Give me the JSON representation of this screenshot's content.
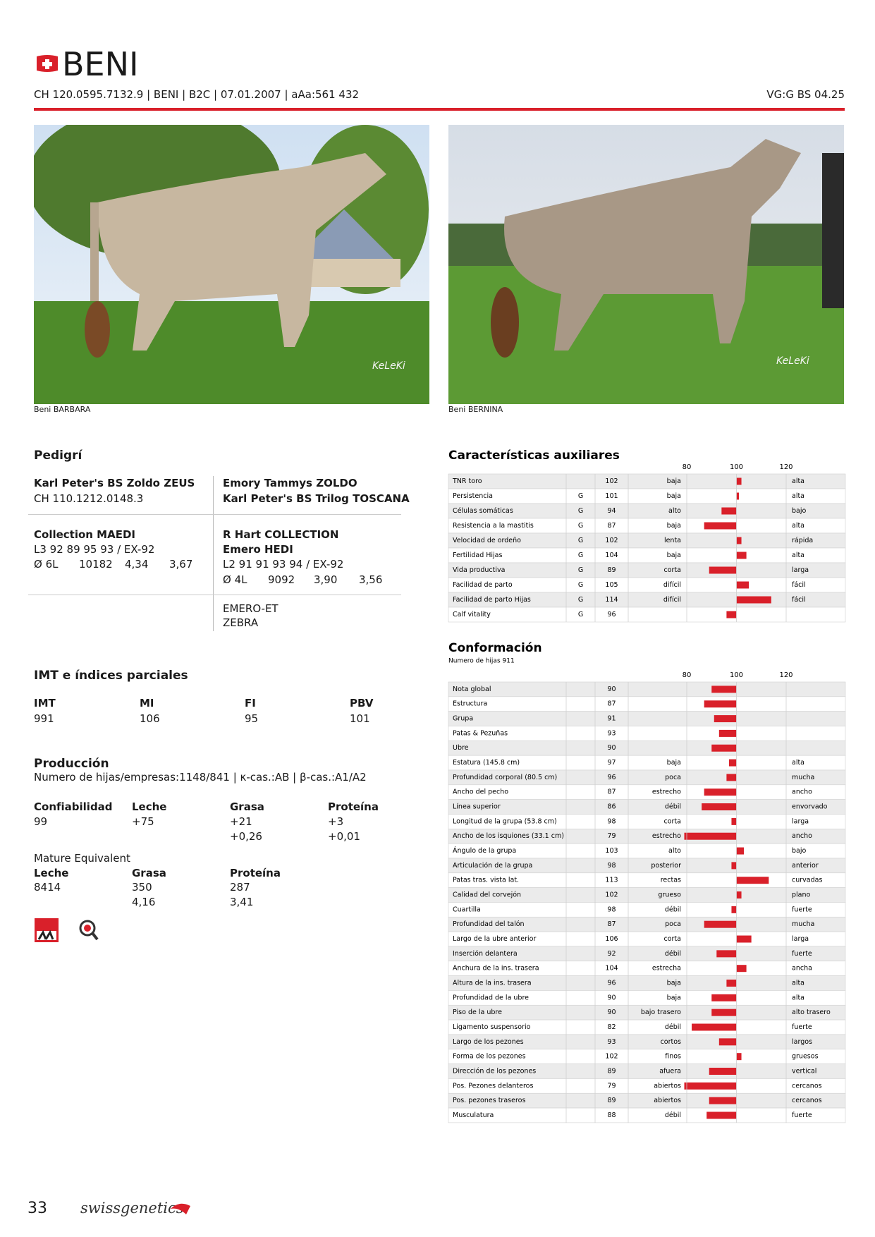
{
  "header": {
    "title": "BENI",
    "id_line": "CH 120.0595.7132.9 | BENI | B2C | 07.01.2007 | aAa:561 432",
    "classification": "VG:G BS 04.25"
  },
  "photos": [
    {
      "caption": "Beni BARBARA",
      "watermark": "KeLeKi"
    },
    {
      "caption": "Beni BERNINA",
      "watermark": "KeLeKi"
    }
  ],
  "pedigree": {
    "title": "Pedigrí",
    "sire": {
      "name": "Karl Peter's BS Zoldo ZEUS",
      "id": "CH 110.1212.0148.3"
    },
    "sire_parents": [
      "Emory Tammys ZOLDO",
      "Karl Peter's BS Trilog TOSCANA"
    ],
    "dam": {
      "name": "Collection MAEDI",
      "score": "L3 92 89 95 93 / EX-92",
      "lactations": "Ø 6L",
      "milk": "10182",
      "fat": "4,34",
      "protein": "3,67"
    },
    "dam_parents": {
      "sire": "R Hart COLLECTION",
      "dam": "Emero HEDI",
      "score": "L2 91 91 93 94 / EX-92",
      "lactations": "Ø 4L",
      "milk": "9092",
      "fat": "3,90",
      "protein": "3,56"
    },
    "granddam_parents": [
      "EMERO-ET",
      "ZEBRA"
    ]
  },
  "indices": {
    "title": "IMT e índices parciales",
    "headers": [
      "IMT",
      "MI",
      "FI",
      "PBV"
    ],
    "values": [
      "991",
      "106",
      "95",
      "101"
    ]
  },
  "production": {
    "title": "Producción",
    "subtitle": "Numero de hijas/empresas:1148/841 | κ-cas.:AB | β-cas.:A1/A2",
    "headers": [
      "Confiabilidad",
      "Leche",
      "Grasa",
      "Proteína"
    ],
    "values": [
      [
        "99"
      ],
      [
        "+75"
      ],
      [
        "+21",
        "+0,26"
      ],
      [
        "+3",
        "+0,01"
      ]
    ],
    "mature_title": "Mature Equivalent",
    "mature_headers": [
      "Leche",
      "Grasa",
      "Proteína"
    ],
    "mature_values": [
      [
        "8414"
      ],
      [
        "350",
        "4,16"
      ],
      [
        "287",
        "3,41"
      ]
    ]
  },
  "auxiliary": {
    "title": "Características auxiliares",
    "xlim": [
      80,
      120
    ],
    "xticks": [
      80,
      100,
      120
    ],
    "rows": [
      {
        "name": "TNR toro",
        "g": null,
        "value": 102,
        "low": "baja",
        "high": "alta"
      },
      {
        "name": "Persistencia",
        "g": "G",
        "value": 101,
        "low": "baja",
        "high": "alta"
      },
      {
        "name": "Células somáticas",
        "g": "G",
        "value": 94,
        "low": "alto",
        "high": "bajo"
      },
      {
        "name": "Resistencia a la mastitis",
        "g": "G",
        "value": 87,
        "low": "baja",
        "high": "alta"
      },
      {
        "name": "Velocidad de ordeño",
        "g": "G",
        "value": 102,
        "low": "lenta",
        "high": "rápida"
      },
      {
        "name": "Fertilidad Hijas",
        "g": "G",
        "value": 104,
        "low": "baja",
        "high": "alta"
      },
      {
        "name": "Vida productiva",
        "g": "G",
        "value": 89,
        "low": "corta",
        "high": "larga"
      },
      {
        "name": "Facilidad de parto",
        "g": "G",
        "value": 105,
        "low": "difícil",
        "high": "fácil"
      },
      {
        "name": "Facilidad de parto Hijas",
        "g": "G",
        "value": 114,
        "low": "difícil",
        "high": "fácil"
      },
      {
        "name": "Calf vitality",
        "g": "G",
        "value": 96,
        "low": null,
        "high": null
      }
    ]
  },
  "conformation": {
    "title": "Conformación",
    "subtitle": "Numero de hijas 911",
    "xlim": [
      80,
      120
    ],
    "xticks": [
      80,
      100,
      120
    ],
    "rows": [
      {
        "name": "Nota global",
        "g": null,
        "value": 90,
        "low": null,
        "high": null
      },
      {
        "name": "Estructura",
        "g": null,
        "value": 87,
        "low": null,
        "high": null
      },
      {
        "name": "Grupa",
        "g": null,
        "value": 91,
        "low": null,
        "high": null
      },
      {
        "name": "Patas & Pezuñas",
        "g": null,
        "value": 93,
        "low": null,
        "high": null
      },
      {
        "name": "Ubre",
        "g": null,
        "value": 90,
        "low": null,
        "high": null
      },
      {
        "name": "Estatura (145.8 cm)",
        "g": null,
        "value": 97,
        "low": "baja",
        "high": "alta"
      },
      {
        "name": "Profundidad corporal (80.5 cm)",
        "g": null,
        "value": 96,
        "low": "poca",
        "high": "mucha"
      },
      {
        "name": "Ancho del pecho",
        "g": null,
        "value": 87,
        "low": "estrecho",
        "high": "ancho"
      },
      {
        "name": "Línea superior",
        "g": null,
        "value": 86,
        "low": "débil",
        "high": "envorvado"
      },
      {
        "name": "Longitud de la grupa (53.8 cm)",
        "g": null,
        "value": 98,
        "low": "corta",
        "high": "larga"
      },
      {
        "name": "Ancho de los isquiones (33.1 cm)",
        "g": null,
        "value": 79,
        "low": "estrecho",
        "high": "ancho"
      },
      {
        "name": "Ángulo de la grupa",
        "g": null,
        "value": 103,
        "low": "alto",
        "high": "bajo"
      },
      {
        "name": "Articulación de la grupa",
        "g": null,
        "value": 98,
        "low": "posterior",
        "high": "anterior"
      },
      {
        "name": "Patas tras. vista lat.",
        "g": null,
        "value": 113,
        "low": "rectas",
        "high": "curvadas"
      },
      {
        "name": "Calidad del corvejón",
        "g": null,
        "value": 102,
        "low": "grueso",
        "high": "plano"
      },
      {
        "name": "Cuartilla",
        "g": null,
        "value": 98,
        "low": "débil",
        "high": "fuerte"
      },
      {
        "name": "Profundidad del talón",
        "g": null,
        "value": 87,
        "low": "poca",
        "high": "mucha"
      },
      {
        "name": "Largo de la ubre anterior",
        "g": null,
        "value": 106,
        "low": "corta",
        "high": "larga"
      },
      {
        "name": "Inserción delantera",
        "g": null,
        "value": 92,
        "low": "débil",
        "high": "fuerte"
      },
      {
        "name": "Anchura de la ins. trasera",
        "g": null,
        "value": 104,
        "low": "estrecha",
        "high": "ancha"
      },
      {
        "name": "Altura de la ins. trasera",
        "g": null,
        "value": 96,
        "low": "baja",
        "high": "alta"
      },
      {
        "name": "Profundidad de la ubre",
        "g": null,
        "value": 90,
        "low": "baja",
        "high": "alta"
      },
      {
        "name": "Piso de la ubre",
        "g": null,
        "value": 90,
        "low": "bajo trasero",
        "high": "alto trasero"
      },
      {
        "name": "Ligamento suspensorio",
        "g": null,
        "value": 82,
        "low": "débil",
        "high": "fuerte"
      },
      {
        "name": "Largo de los pezones",
        "g": null,
        "value": 93,
        "low": "cortos",
        "high": "largos"
      },
      {
        "name": "Forma de los pezones",
        "g": null,
        "value": 102,
        "low": "finos",
        "high": "gruesos"
      },
      {
        "name": "Dirección de los pezones",
        "g": null,
        "value": 89,
        "low": "afuera",
        "high": "vertical"
      },
      {
        "name": "Pos. Pezones delanteros",
        "g": null,
        "value": 79,
        "low": "abiertos",
        "high": "cercanos"
      },
      {
        "name": "Pos. pezones traseros",
        "g": null,
        "value": 89,
        "low": "abiertos",
        "high": "cercanos"
      },
      {
        "name": "Musculatura",
        "g": null,
        "value": 88,
        "low": "débil",
        "high": "fuerte"
      }
    ]
  },
  "footer": {
    "page": "33",
    "brand": "swissgenetics"
  }
}
